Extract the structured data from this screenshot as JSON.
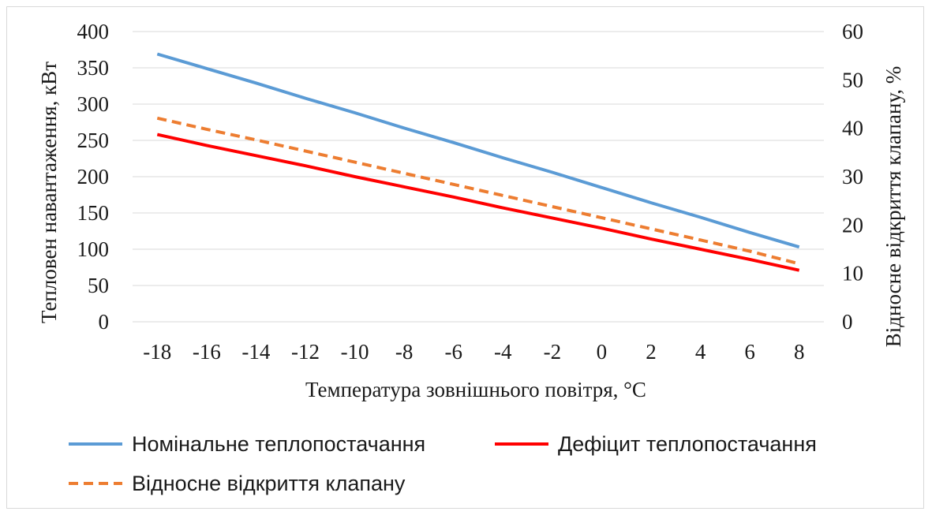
{
  "chart_data": {
    "type": "line",
    "x": [
      -18,
      -16,
      -14,
      -12,
      -10,
      -8,
      -6,
      -4,
      -2,
      0,
      2,
      4,
      6,
      8
    ],
    "x_tick_labels": [
      "-18",
      "-16",
      "-14",
      "-12",
      "-10",
      "-8",
      "-6",
      "-4",
      "-2",
      "0",
      "2",
      "4",
      "6",
      "8"
    ],
    "xlabel": "Температура зовнішнього повітря, °C",
    "ylabel": "Тепловен навантаження, кВт",
    "ylabel2": "Відносне відкриття клапану, %",
    "ylim": [
      0,
      400
    ],
    "ylim2": [
      0,
      60
    ],
    "y_tick_labels": [
      "0",
      "50",
      "100",
      "150",
      "200",
      "250",
      "300",
      "350",
      "400"
    ],
    "y2_tick_labels": [
      "0",
      "10",
      "20",
      "30",
      "40",
      "50",
      "60"
    ],
    "grid": true,
    "legend_position": "bottom",
    "series": [
      {
        "name": "Номінальне теплопостачання",
        "axis": "left",
        "color": "#5b9bd5",
        "style": "solid",
        "values": [
          369,
          349,
          329,
          308,
          288,
          267,
          247,
          226,
          206,
          185,
          164,
          144,
          123,
          103
        ]
      },
      {
        "name": "Дефіцит теплопостачання",
        "axis": "left",
        "color": "#ff0000",
        "style": "solid",
        "values": [
          258,
          243,
          229,
          215,
          200,
          186,
          172,
          157,
          143,
          129,
          114,
          100,
          86,
          71
        ]
      },
      {
        "name": "Відносне відкриття клапану",
        "axis": "right",
        "color": "#ed7d31",
        "style": "dashed",
        "values": [
          42.1,
          39.8,
          37.6,
          35.3,
          33.0,
          30.7,
          28.4,
          26.1,
          23.8,
          21.5,
          19.2,
          16.9,
          14.6,
          12.0
        ]
      }
    ]
  }
}
